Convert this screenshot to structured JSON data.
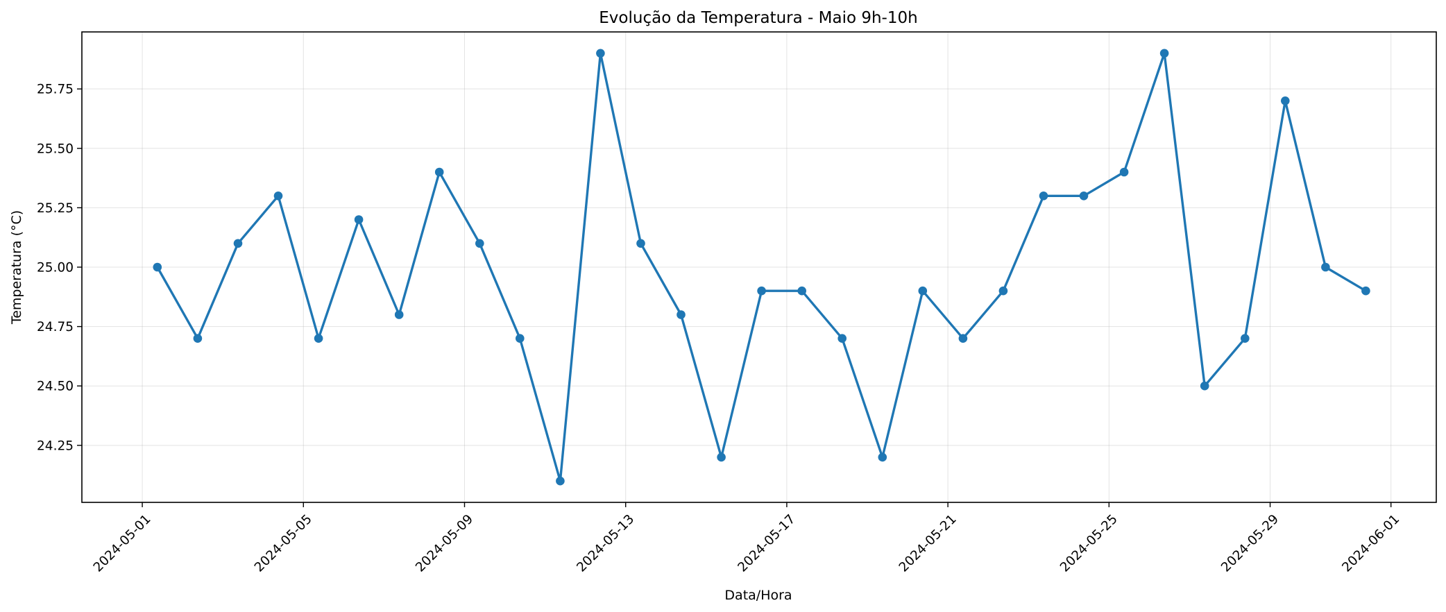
{
  "chart_data": {
    "type": "line",
    "title": "Evolução da Temperatura - Maio 9h-10h",
    "xlabel": "Data/Hora",
    "ylabel": "Temperatura (°C)",
    "xlim": [
      "2024-04-29T12:00",
      "2024-06-02T03:00"
    ],
    "ylim": [
      24.01,
      25.99
    ],
    "x_ticks": [
      "2024-05-01",
      "2024-05-05",
      "2024-05-09",
      "2024-05-13",
      "2024-05-17",
      "2024-05-21",
      "2024-05-25",
      "2024-05-29",
      "2024-06-01"
    ],
    "y_ticks": [
      24.25,
      24.5,
      24.75,
      25.0,
      25.25,
      25.5,
      25.75
    ],
    "y_tick_labels": [
      "24.25",
      "24.50",
      "24.75",
      "25.00",
      "25.25",
      "25.50",
      "25.75"
    ],
    "grid": true,
    "series_color": "#1f77b4",
    "series": [
      {
        "x": [
          "2024-05-01T09:00",
          "2024-05-02T09:00",
          "2024-05-03T09:00",
          "2024-05-04T09:00",
          "2024-05-05T09:00",
          "2024-05-06T09:00",
          "2024-05-07T09:00",
          "2024-05-08T09:00",
          "2024-05-09T09:00",
          "2024-05-10T09:00",
          "2024-05-11T09:00",
          "2024-05-12T09:00",
          "2024-05-13T09:00",
          "2024-05-14T09:00",
          "2024-05-15T09:00",
          "2024-05-16T09:00",
          "2024-05-17T09:00",
          "2024-05-18T09:00",
          "2024-05-19T09:00",
          "2024-05-20T09:00",
          "2024-05-21T09:00",
          "2024-05-22T09:00",
          "2024-05-23T09:00",
          "2024-05-24T09:00",
          "2024-05-25T09:00",
          "2024-05-26T09:00",
          "2024-05-27T09:00",
          "2024-05-28T09:00",
          "2024-05-29T09:00",
          "2024-05-30T09:00",
          "2024-05-31T09:00"
        ],
        "values": [
          25.0,
          24.7,
          25.1,
          25.3,
          24.7,
          25.2,
          24.8,
          25.4,
          25.1,
          24.7,
          24.1,
          25.9,
          25.1,
          24.8,
          24.2,
          24.9,
          24.9,
          24.7,
          24.2,
          24.9,
          24.7,
          24.9,
          25.3,
          25.3,
          25.4,
          25.9,
          24.5,
          24.7,
          25.7,
          25.0,
          24.9
        ]
      }
    ]
  }
}
